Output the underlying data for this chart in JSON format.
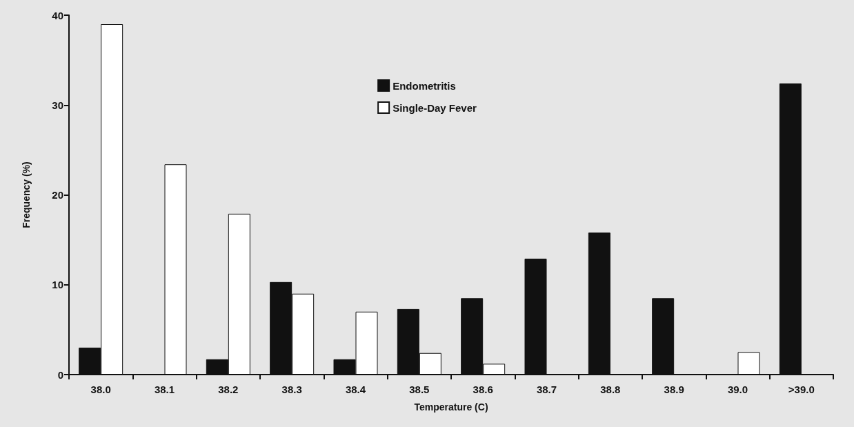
{
  "chart_data": {
    "type": "bar",
    "xlabel": "Temperature (C)",
    "ylabel": "Frequency (%)",
    "categories": [
      "38.0",
      "38.1",
      "38.2",
      "38.3",
      "38.4",
      "38.5",
      "38.6",
      "38.7",
      "38.8",
      "38.9",
      "39.0",
      ">39.0"
    ],
    "series": [
      {
        "name": "Endometritis",
        "color": "#111111",
        "values": [
          3.0,
          0,
          1.7,
          10.3,
          1.7,
          7.3,
          8.5,
          12.9,
          15.8,
          8.5,
          0,
          32.4
        ]
      },
      {
        "name": "Single-Day Fever",
        "color": "#ffffff",
        "values": [
          39.0,
          23.4,
          17.9,
          9.0,
          7.0,
          2.4,
          1.2,
          0,
          0,
          0,
          2.5,
          0
        ]
      }
    ],
    "ylim": [
      0,
      40
    ],
    "yticks": [
      0,
      10,
      20,
      30,
      40
    ],
    "grid": false,
    "legend": "top"
  }
}
